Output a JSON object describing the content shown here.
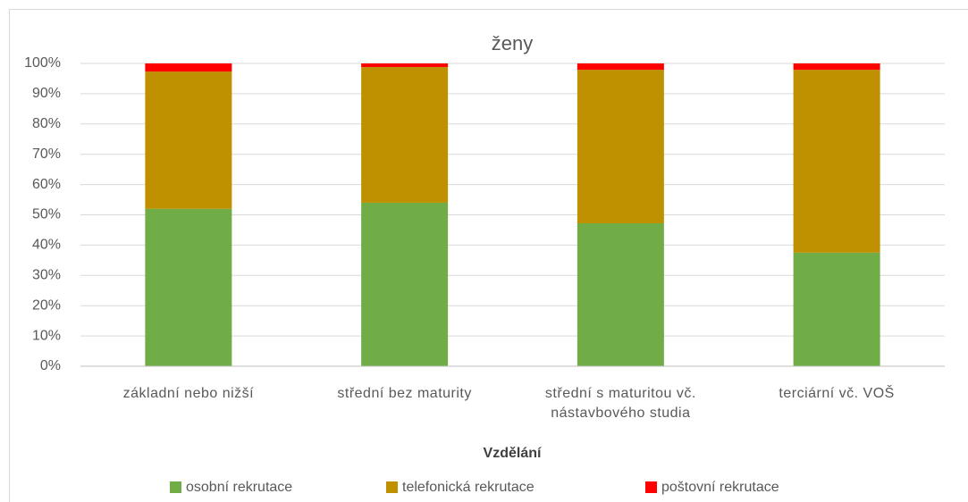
{
  "chart_data": {
    "type": "stacked_bar_100",
    "title": "ženy",
    "x_label": "Vzdělání",
    "categories": [
      "základní nebo nižší",
      "střední bez maturity",
      "střední s maturitou vč. nástavbového studia",
      "terciární vč. VOŠ"
    ],
    "series": [
      {
        "name": "osobní rekrutace",
        "color": "#70ad47",
        "values": [
          52,
          54,
          47.2,
          37.5
        ]
      },
      {
        "name": "telefonická rekrutace",
        "color": "#bf9000",
        "values": [
          45.3,
          44.8,
          50.7,
          60.4
        ]
      },
      {
        "name": "poštovní rekrutace",
        "color": "#ff0000",
        "values": [
          2.7,
          1.2,
          2.1,
          2.1
        ]
      }
    ],
    "ylim": [
      0,
      100
    ],
    "yticks": [
      {
        "value": 0,
        "label": "0%"
      },
      {
        "value": 10,
        "label": "10%"
      },
      {
        "value": 20,
        "label": "20%"
      },
      {
        "value": 30,
        "label": "30%"
      },
      {
        "value": 40,
        "label": "40%"
      },
      {
        "value": 50,
        "label": "50%"
      },
      {
        "value": 60,
        "label": "60%"
      },
      {
        "value": 70,
        "label": "70%"
      },
      {
        "value": 80,
        "label": "80%"
      },
      {
        "value": 90,
        "label": "90%"
      },
      {
        "value": 100,
        "label": "100%"
      }
    ],
    "grid": true,
    "legend": "bottom"
  }
}
